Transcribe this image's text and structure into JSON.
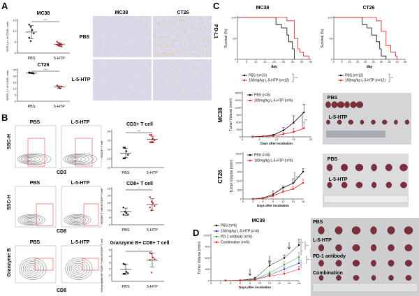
{
  "panels": {
    "a": "A",
    "b": "B",
    "c": "C",
    "d": "D"
  },
  "colors": {
    "control": "#000000",
    "treatment": "#e8191b",
    "l5htp_d": "#1f2fd0",
    "pd1": "#2f9a2f",
    "combination": "#e8191b"
  },
  "panel_a": {
    "ihc_cols": [
      "MC38",
      "CT26"
    ],
    "ihc_rows": [
      "PBS",
      "L-5-HTP"
    ],
    "stain_label": "PD-L1"
  },
  "panel_b": {
    "flow_cols": [
      "PBS",
      "L-5-HTP"
    ],
    "rows": [
      {
        "ylabel": "SSC-H",
        "xlabel": "CD3"
      },
      {
        "ylabel": "SSC-H",
        "xlabel": "CD8"
      },
      {
        "ylabel": "Granzyme B",
        "xlabel": "CD8"
      }
    ]
  },
  "panel_c": {
    "photo_labels_mc38": [
      "PBS",
      "L-5-HTP"
    ],
    "photo_labels_ct26": [
      "PBS",
      "L-5-HTP"
    ],
    "row_labels": [
      "MC38",
      "CT26"
    ]
  },
  "panel_d": {
    "photo_labels": [
      "PBS",
      "L-5-HTP",
      "PD-1 antibody",
      "Combination"
    ]
  },
  "chart_data": [
    {
      "id": "a_mc38",
      "type": "scatter",
      "title": "MC38",
      "ylabel": "%PD-L1+ of CD45- cells",
      "categories": [
        "PBS",
        "5-HTP"
      ],
      "ylim": [
        0,
        15
      ],
      "yticks": [
        0,
        5,
        10,
        15
      ],
      "series": [
        {
          "values": [
            13,
            12,
            10.5,
            9,
            7,
            5.5
          ]
        },
        {
          "values": [
            5.2,
            4.6,
            4.2,
            4,
            3.8,
            3.5,
            3.2,
            3
          ]
        }
      ],
      "means": [
        9.6,
        3.9
      ],
      "sd": [
        3,
        0.7
      ],
      "significance": "****"
    },
    {
      "id": "a_ct26",
      "type": "scatter",
      "title": "CT26",
      "ylabel": "%PD-L1+ of CD45- cells",
      "categories": [
        "PBS",
        "5-HTP"
      ],
      "ylim": [
        0,
        25
      ],
      "yticks": [
        0,
        5,
        10,
        15,
        20,
        25
      ],
      "series": [
        {
          "values": [
            23,
            22.5,
            22.3,
            22,
            22.6
          ]
        },
        {
          "values": [
            12.5,
            11.2,
            10.3,
            11.6
          ]
        }
      ],
      "means": [
        22.5,
        11.3
      ],
      "sd": [
        0.5,
        0.9
      ],
      "significance": "****"
    },
    {
      "id": "b_cd3",
      "type": "scatter",
      "title": "CD3+ T cell",
      "ylabel": "%CD3+ T cell",
      "categories": [
        "PBS",
        "5-HTP"
      ],
      "ylim": [
        10,
        30
      ],
      "yticks": [
        10,
        15,
        20,
        25,
        30
      ],
      "series": [
        {
          "values": [
            21,
            21,
            19,
            17,
            15,
            15
          ]
        },
        {
          "values": [
            28,
            28,
            26,
            25,
            24,
            24,
            24
          ]
        }
      ],
      "means": [
        18,
        25.5
      ],
      "sd": [
        2.5,
        1.8
      ],
      "significance": "***"
    },
    {
      "id": "b_cd8",
      "type": "scatter",
      "title": "CD8+ T cell",
      "ylabel": "%CD8+ T cell of CD3+ T cell",
      "categories": [
        "PBS",
        "5-HTP"
      ],
      "ylim": [
        0,
        25
      ],
      "yticks": [
        0,
        5,
        10,
        15,
        20,
        25
      ],
      "series": [
        {
          "values": [
            12,
            9,
            8,
            7,
            7
          ]
        },
        {
          "values": [
            19,
            16,
            15,
            13,
            12,
            10
          ]
        }
      ],
      "means": [
        9,
        14
      ],
      "sd": [
        2.5,
        4
      ],
      "significance": "*"
    },
    {
      "id": "b_gzmb",
      "type": "scatter",
      "title": "Granzyme B+ CD8+ T cell",
      "ylabel": "%Granzyme B+ CD8+ T cell of CD3+ T cell",
      "categories": [
        "PBS",
        "5-HTP"
      ],
      "ylim": [
        0,
        5
      ],
      "yticks": [
        1,
        2,
        3,
        4,
        5
      ],
      "series": [
        {
          "values": [
            2.8,
            2.7,
            1.5,
            1.3,
            1.2,
            1.2
          ]
        },
        {
          "values": [
            4.5,
            4.4,
            3.8,
            3.5,
            3.4,
            1.4
          ]
        }
      ],
      "means": [
        1.9,
        3.4
      ],
      "sd": [
        0.8,
        1.1
      ],
      "significance": "*"
    },
    {
      "id": "c_mc38_surv",
      "type": "line",
      "step": true,
      "title": "MC38",
      "xlabel": "day",
      "ylabel": "Survival (%)",
      "xlim": [
        0,
        40
      ],
      "xticks": [
        0,
        5,
        10,
        15,
        20,
        25,
        30,
        35,
        40
      ],
      "ylim": [
        0,
        100
      ],
      "yticks": [
        0,
        50,
        100
      ],
      "series": [
        {
          "name": "PBS (n=10)",
          "x": [
            0,
            21,
            24,
            27,
            28,
            30,
            31
          ],
          "y": [
            100,
            83,
            75,
            58,
            42,
            25,
            0
          ]
        },
        {
          "name": "100mg/kg L-5-HTP (n=12)",
          "x": [
            0,
            27,
            31,
            33,
            34,
            36,
            39
          ],
          "y": [
            100,
            92,
            50,
            25,
            17,
            8,
            0
          ]
        }
      ],
      "significance": "****"
    },
    {
      "id": "c_ct26_surv",
      "type": "line",
      "step": true,
      "title": "CT26",
      "xlabel": "day",
      "ylabel": "Survival (%)",
      "xlim": [
        0,
        45
      ],
      "xticks": [
        0,
        5,
        10,
        15,
        20,
        25,
        30,
        35,
        40,
        45
      ],
      "ylim": [
        0,
        100
      ],
      "yticks": [
        0,
        50,
        100
      ],
      "series": [
        {
          "name": "PBS (n=12)",
          "x": [
            0,
            18,
            21,
            24,
            27,
            29,
            30,
            33
          ],
          "y": [
            100,
            83,
            75,
            58,
            42,
            25,
            8,
            0
          ]
        },
        {
          "name": "100mg/kg L-5-HTP (n=12)",
          "x": [
            0,
            27,
            30,
            33,
            36,
            39,
            40
          ],
          "y": [
            100,
            92,
            67,
            33,
            17,
            8,
            0
          ]
        }
      ],
      "significance": "***"
    },
    {
      "id": "c_mc38_vol",
      "type": "line",
      "title": "",
      "xlabel": "Days after incubation",
      "ylabel": "Tumor Volume (mm³)",
      "xlim": [
        0,
        20
      ],
      "xticks": [
        0,
        5,
        10,
        15,
        20
      ],
      "ylim": [
        0,
        1800
      ],
      "yticks": [
        0,
        300,
        600,
        900,
        1200,
        1500,
        1800
      ],
      "series": [
        {
          "name": "PBS (n=6)",
          "x": [
            3,
            6,
            9,
            12,
            15,
            18
          ],
          "y": [
            5,
            20,
            70,
            260,
            580,
            1000
          ],
          "err": [
            2,
            8,
            30,
            120,
            280,
            330
          ]
        },
        {
          "name": "100mg/kg L-5-HTP (n=6)",
          "x": [
            3,
            6,
            9,
            12,
            15,
            18
          ],
          "y": [
            3,
            15,
            40,
            110,
            200,
            350
          ],
          "err": [
            2,
            6,
            20,
            60,
            150,
            250
          ]
        }
      ],
      "significance": "****"
    },
    {
      "id": "c_ct26_vol",
      "type": "line",
      "title": "",
      "xlabel": "Days after incubation",
      "ylabel": "Tumor Volume (mm³)",
      "xlim": [
        0,
        18
      ],
      "xticks": [
        0,
        3,
        6,
        9,
        12,
        15,
        18
      ],
      "ylim": [
        0,
        1500
      ],
      "yticks": [
        0,
        300,
        600,
        900,
        1200,
        1500
      ],
      "series": [
        {
          "name": "PBS (n=6)",
          "x": [
            3,
            6,
            9,
            12,
            15,
            18
          ],
          "y": [
            0,
            30,
            150,
            370,
            520,
            900
          ],
          "err": [
            0,
            15,
            120,
            60,
            150,
            100
          ]
        },
        {
          "name": "100mg/kg L-5-HTP (n=6)",
          "x": [
            3,
            6,
            9,
            12,
            15,
            18
          ],
          "y": [
            0,
            20,
            100,
            240,
            330,
            530
          ],
          "err": [
            0,
            10,
            50,
            60,
            80,
            120
          ]
        }
      ],
      "significance": "****"
    },
    {
      "id": "d_mc38_vol",
      "type": "line",
      "title": "MC38",
      "xlabel": "Days after incubation",
      "ylabel": "Tumor Volume (mm³)",
      "xlim": [
        0,
        18
      ],
      "xticks": [
        0,
        2,
        4,
        6,
        8,
        10,
        12,
        14,
        16,
        18
      ],
      "ylim": [
        0,
        1200
      ],
      "yticks": [
        0,
        300,
        600,
        900,
        1200
      ],
      "treatment_days": [
        8,
        12,
        16
      ],
      "series": [
        {
          "name": "PBS (n=6)",
          "x": [
            3,
            6,
            9,
            12,
            15,
            18
          ],
          "y": [
            5,
            10,
            60,
            400,
            600,
            940
          ],
          "err": [
            2,
            5,
            30,
            60,
            80,
            150
          ]
        },
        {
          "name": "100mg/kg L-5-HTP (n=6)",
          "x": [
            3,
            6,
            9,
            12,
            15,
            18
          ],
          "y": [
            3,
            8,
            30,
            150,
            300,
            460
          ],
          "err": [
            2,
            4,
            15,
            40,
            60,
            100
          ]
        },
        {
          "name": "PD-1 antibody (n=6)",
          "x": [
            3,
            6,
            9,
            12,
            15,
            18
          ],
          "y": [
            3,
            8,
            40,
            200,
            420,
            620
          ],
          "err": [
            2,
            4,
            20,
            50,
            80,
            120
          ]
        },
        {
          "name": "Combination (n=6)",
          "x": [
            3,
            6,
            9,
            12,
            15,
            18
          ],
          "y": [
            2,
            6,
            20,
            120,
            180,
            300
          ],
          "err": [
            1,
            3,
            10,
            40,
            50,
            80
          ]
        }
      ],
      "significance": [
        "***",
        "****",
        "**",
        "*",
        "****",
        "****"
      ]
    }
  ]
}
